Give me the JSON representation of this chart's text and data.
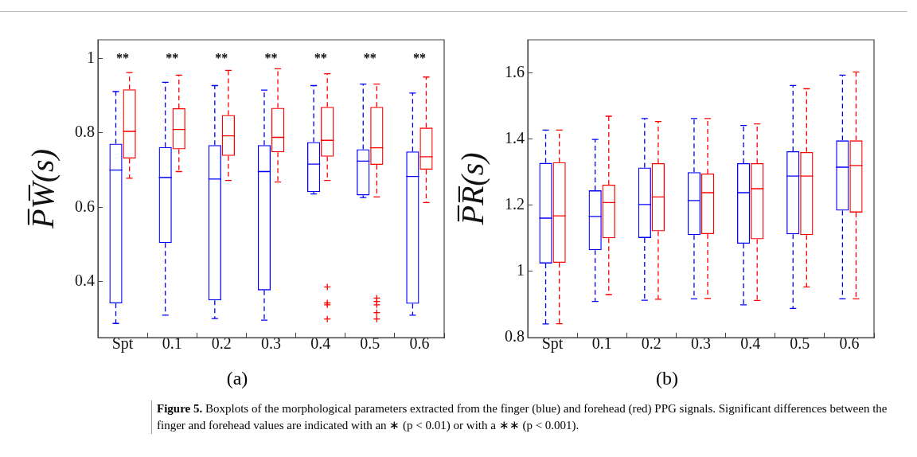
{
  "chart_data": [
    {
      "type": "box",
      "ylabel": "P̅W̅(s)",
      "categories": [
        "Spt",
        "0.1",
        "0.2",
        "0.3",
        "0.4",
        "0.5",
        "0.6"
      ],
      "ylim": [
        0.25,
        1.05
      ],
      "yticks": [
        0.4,
        0.6,
        0.8,
        1
      ],
      "grid": false,
      "legend": false,
      "line_style": "dashed",
      "series": [
        {
          "color": "#0000ff",
          "boxes": [
            {
              "low": 0.288,
              "q1": 0.342,
              "median": 0.7,
              "q3": 0.771,
              "high": 0.911
            },
            {
              "low": 0.31,
              "q1": 0.504,
              "median": 0.68,
              "q3": 0.762,
              "high": 0.936
            },
            {
              "low": 0.301,
              "q1": 0.35,
              "median": 0.676,
              "q3": 0.767,
              "high": 0.927
            },
            {
              "low": 0.297,
              "q1": 0.377,
              "median": 0.696,
              "q3": 0.767,
              "high": 0.915
            },
            {
              "low": 0.636,
              "q1": 0.641,
              "median": 0.716,
              "q3": 0.775,
              "high": 0.927
            },
            {
              "low": 0.626,
              "q1": 0.632,
              "median": 0.724,
              "q3": 0.756,
              "high": 0.931
            },
            {
              "low": 0.31,
              "q1": 0.341,
              "median": 0.683,
              "q3": 0.75,
              "high": 0.907
            }
          ]
        },
        {
          "color": "#ff0000",
          "boxes": [
            {
              "low": 0.678,
              "q1": 0.731,
              "median": 0.804,
              "q3": 0.917,
              "high": 0.962
            },
            {
              "low": 0.696,
              "q1": 0.756,
              "median": 0.809,
              "q3": 0.866,
              "high": 0.955
            },
            {
              "low": 0.672,
              "q1": 0.738,
              "median": 0.792,
              "q3": 0.848,
              "high": 0.968
            },
            {
              "low": 0.668,
              "q1": 0.748,
              "median": 0.788,
              "q3": 0.867,
              "high": 0.972
            },
            {
              "low": 0.672,
              "q1": 0.736,
              "median": 0.78,
              "q3": 0.87,
              "high": 0.959,
              "outliers": [
                0.386,
                0.343,
                0.338,
                0.3
              ]
            },
            {
              "low": 0.628,
              "q1": 0.714,
              "median": 0.76,
              "q3": 0.87,
              "high": 0.931,
              "outliers": [
                0.356,
                0.347,
                0.338,
                0.317,
                0.3
              ]
            },
            {
              "low": 0.613,
              "q1": 0.701,
              "median": 0.736,
              "q3": 0.814,
              "high": 0.95
            }
          ]
        }
      ],
      "annotations": [
        "(a)",
        "**",
        "**",
        "**",
        "**",
        "**",
        "**",
        "**"
      ]
    },
    {
      "type": "box",
      "ylabel": "P̅R̅(s)",
      "categories": [
        "Spt",
        "0.1",
        "0.2",
        "0.3",
        "0.4",
        "0.5",
        "0.6"
      ],
      "ylim": [
        0.8,
        1.7
      ],
      "yticks": [
        0.8,
        1,
        1.2,
        1.4,
        1.6
      ],
      "grid": false,
      "legend": false,
      "line_style": "dashed",
      "series": [
        {
          "color": "#0000ff",
          "boxes": [
            {
              "low": 0.841,
              "q1": 1.024,
              "median": 1.161,
              "q3": 1.328,
              "high": 1.427
            },
            {
              "low": 0.909,
              "q1": 1.064,
              "median": 1.166,
              "q3": 1.245,
              "high": 1.399
            },
            {
              "low": 0.913,
              "q1": 1.101,
              "median": 1.202,
              "q3": 1.314,
              "high": 1.462
            },
            {
              "low": 0.917,
              "q1": 1.11,
              "median": 1.214,
              "q3": 1.3,
              "high": 1.462
            },
            {
              "low": 0.899,
              "q1": 1.084,
              "median": 1.238,
              "q3": 1.327,
              "high": 1.441
            },
            {
              "low": 0.888,
              "q1": 1.112,
              "median": 1.288,
              "q3": 1.363,
              "high": 1.562
            },
            {
              "low": 0.917,
              "q1": 1.184,
              "median": 1.315,
              "q3": 1.396,
              "high": 1.593
            }
          ]
        },
        {
          "color": "#ff0000",
          "boxes": [
            {
              "low": 0.842,
              "q1": 1.026,
              "median": 1.168,
              "q3": 1.33,
              "high": 1.427
            },
            {
              "low": 0.93,
              "q1": 1.1,
              "median": 1.208,
              "q3": 1.262,
              "high": 1.469
            },
            {
              "low": 0.916,
              "q1": 1.121,
              "median": 1.225,
              "q3": 1.327,
              "high": 1.453
            },
            {
              "low": 0.918,
              "q1": 1.113,
              "median": 1.238,
              "q3": 1.296,
              "high": 1.462
            },
            {
              "low": 0.912,
              "q1": 1.097,
              "median": 1.25,
              "q3": 1.327,
              "high": 1.446
            },
            {
              "low": 0.953,
              "q1": 1.11,
              "median": 1.288,
              "q3": 1.361,
              "high": 1.552
            },
            {
              "low": 0.917,
              "q1": 1.178,
              "median": 1.32,
              "q3": 1.396,
              "high": 1.603
            }
          ]
        }
      ],
      "annotations": [
        "(b)",
        "Figure 5. Boxplots of the morphological parameters extracted from the finger (blue) and forehead (red) PPG signals. Significant differences between the finger and forehead values are indicated with an ∗ (p < 0.01) or with a ∗∗ (p < 0.001)."
      ]
    }
  ]
}
